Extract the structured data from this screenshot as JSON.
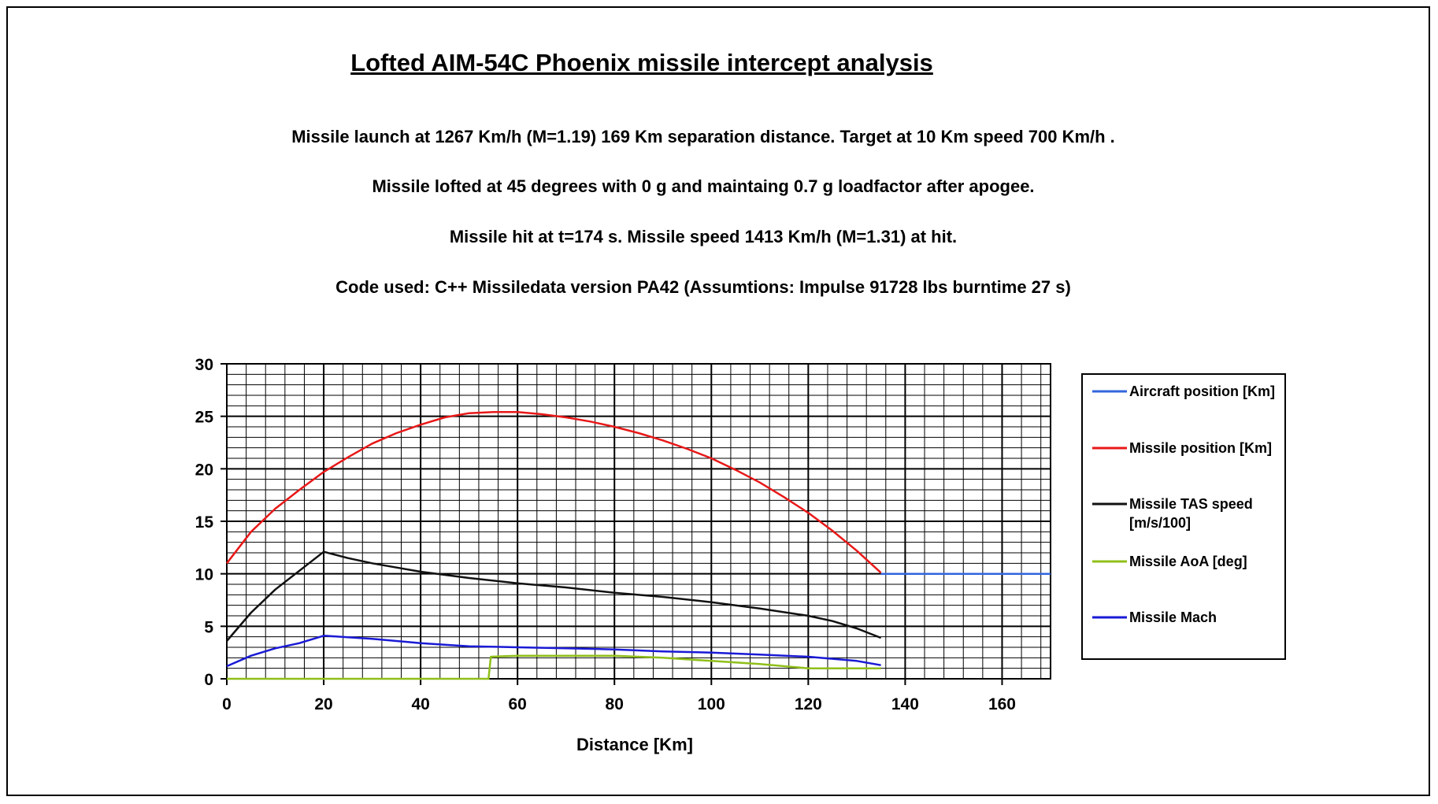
{
  "header": {
    "title": "Lofted AIM-54C Phoenix missile intercept analysis",
    "line1": "Missile launch at 1267 Km/h (M=1.19) 169 Km separation distance. Target at 10 Km speed 700 Km/h .",
    "line2": "Missile lofted at 45 degrees with 0 g and maintaing 0.7 g loadfactor after apogee.",
    "line3": "Missile hit at t=174 s. Missile speed  1413 Km/h (M=1.31) at hit.",
    "line4": "Code used: C++ Missiledata version PA42 (Assumtions: Impulse 91728 lbs burntime 27 s)"
  },
  "chart_data": {
    "type": "line",
    "title": "Lofted AIM-54C Phoenix missile intercept analysis",
    "xlabel": "Distance [Km]",
    "ylabel": "",
    "xlim": [
      0,
      170
    ],
    "ylim": [
      0,
      30
    ],
    "xticks": [
      0,
      20,
      40,
      60,
      80,
      100,
      120,
      140,
      160
    ],
    "yticks": [
      0,
      5,
      10,
      15,
      20,
      25,
      30
    ],
    "minor_x_step": 4,
    "minor_y_step": 1,
    "grid": true,
    "legend_position": "right",
    "series": [
      {
        "name": "Aircraft position [Km]",
        "color": "#3366dd",
        "x": [
          135,
          170
        ],
        "y": [
          10,
          10
        ]
      },
      {
        "name": "Missile position [Km]",
        "color": "#e81818",
        "x": [
          0,
          5,
          10,
          15,
          20,
          25,
          30,
          35,
          40,
          45,
          50,
          55,
          60,
          65,
          70,
          75,
          80,
          85,
          90,
          95,
          100,
          105,
          110,
          115,
          120,
          125,
          130,
          135
        ],
        "y": [
          11,
          14,
          16.2,
          18,
          19.7,
          21.1,
          22.4,
          23.4,
          24.2,
          24.9,
          25.3,
          25.4,
          25.4,
          25.2,
          24.9,
          24.5,
          24,
          23.4,
          22.7,
          21.9,
          21,
          19.9,
          18.7,
          17.3,
          15.8,
          14.1,
          12.2,
          10.1
        ]
      },
      {
        "name": "Missile TAS speed [m/s/100]",
        "color": "#111111",
        "x": [
          0,
          5,
          10,
          15,
          20,
          25,
          30,
          35,
          40,
          50,
          60,
          70,
          80,
          90,
          100,
          110,
          120,
          125,
          130,
          135
        ],
        "y": [
          3.6,
          6.3,
          8.5,
          10.3,
          12.1,
          11.5,
          11,
          10.6,
          10.2,
          9.6,
          9.1,
          8.7,
          8.2,
          7.8,
          7.3,
          6.7,
          6,
          5.5,
          4.8,
          3.9
        ]
      },
      {
        "name": "Missile AoA [deg]",
        "color": "#8fbf1a",
        "x": [
          0,
          54,
          54.5,
          60,
          70,
          80,
          90,
          100,
          110,
          120,
          135
        ],
        "y": [
          0,
          0,
          2.1,
          2.2,
          2.2,
          2.2,
          2.0,
          1.7,
          1.4,
          1.0,
          1.0
        ]
      },
      {
        "name": "Missile Mach",
        "color": "#1a1ad6",
        "x": [
          0,
          5,
          10,
          15,
          20,
          30,
          40,
          50,
          60,
          70,
          80,
          90,
          100,
          110,
          120,
          130,
          135
        ],
        "y": [
          1.2,
          2.2,
          2.9,
          3.4,
          4.1,
          3.8,
          3.4,
          3.1,
          3.0,
          2.9,
          2.8,
          2.6,
          2.5,
          2.3,
          2.1,
          1.7,
          1.3
        ]
      }
    ]
  }
}
